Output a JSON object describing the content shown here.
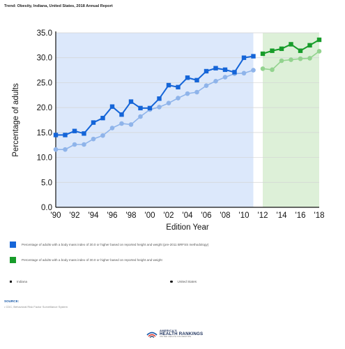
{
  "report_title": "Trend: Obesity, Indiana, United States, 2018 Annual Report",
  "chart_data": {
    "type": "line",
    "ylabel": "Percentage of adults",
    "xlabel": "Edition Year",
    "ylim": [
      0,
      35
    ],
    "yticks": [
      "0.0",
      "5.0",
      "10.0",
      "15.0",
      "20.0",
      "25.0",
      "30.0",
      "35.0"
    ],
    "xlim": [
      1990,
      2018
    ],
    "xticks": [
      {
        "value": 1990,
        "label": "'90"
      },
      {
        "value": 1992,
        "label": "'92"
      },
      {
        "value": 1994,
        "label": "'94"
      },
      {
        "value": 1996,
        "label": "'96"
      },
      {
        "value": 1998,
        "label": "'98"
      },
      {
        "value": 2000,
        "label": "'00"
      },
      {
        "value": 2002,
        "label": "'02"
      },
      {
        "value": 2004,
        "label": "'04"
      },
      {
        "value": 2006,
        "label": "'06"
      },
      {
        "value": 2008,
        "label": "'08"
      },
      {
        "value": 2010,
        "label": "'10"
      },
      {
        "value": 2012,
        "label": "'12"
      },
      {
        "value": 2014,
        "label": "'14"
      },
      {
        "value": 2016,
        "label": "'16"
      },
      {
        "value": 2018,
        "label": "'18"
      }
    ],
    "grid": "horizontal",
    "region_old": {
      "x_start": 1990,
      "x_end": 2011,
      "color": "#dce8fb"
    },
    "region_new": {
      "x_start": 2012,
      "x_end": 2018,
      "color": "#ddf0d8"
    },
    "series": [
      {
        "name": "Indiana",
        "method": "pre-2011",
        "marker": "square",
        "role": "state",
        "color_line": "#1565d8",
        "color_marker": "#1565d8",
        "x": [
          1990,
          1991,
          1992,
          1993,
          1994,
          1995,
          1996,
          1997,
          1998,
          1999,
          2000,
          2001,
          2002,
          2003,
          2004,
          2005,
          2006,
          2007,
          2008,
          2009,
          2010,
          2011
        ],
        "values": [
          14.5,
          14.5,
          15.3,
          14.8,
          17.0,
          17.9,
          20.2,
          18.6,
          21.2,
          19.9,
          19.9,
          21.8,
          24.5,
          24.1,
          26.0,
          25.5,
          27.3,
          27.9,
          27.6,
          27.1,
          30.0,
          30.3
        ]
      },
      {
        "name": "United States",
        "method": "pre-2011",
        "marker": "circle",
        "role": "nation",
        "color_line": "#8fb4ea",
        "color_marker": "#8fb4ea",
        "x": [
          1990,
          1991,
          1992,
          1993,
          1994,
          1995,
          1996,
          1997,
          1998,
          1999,
          2000,
          2001,
          2002,
          2003,
          2004,
          2005,
          2006,
          2007,
          2008,
          2009,
          2010,
          2011
        ],
        "values": [
          11.6,
          11.6,
          12.6,
          12.6,
          13.7,
          14.4,
          15.9,
          16.8,
          16.6,
          18.2,
          19.6,
          20.1,
          20.9,
          21.9,
          22.8,
          23.1,
          24.4,
          25.3,
          26.1,
          26.8,
          26.9,
          27.5
        ]
      },
      {
        "name": "Indiana",
        "method": "current",
        "marker": "square",
        "role": "state",
        "color_line": "#179c2a",
        "color_marker": "#179c2a",
        "x": [
          2012,
          2013,
          2014,
          2015,
          2016,
          2017,
          2018
        ],
        "values": [
          30.8,
          31.4,
          31.8,
          32.7,
          31.4,
          32.5,
          33.6
        ]
      },
      {
        "name": "United States",
        "method": "current",
        "marker": "circle",
        "role": "nation",
        "color_line": "#93d38f",
        "color_marker": "#93d38f",
        "x": [
          2012,
          2013,
          2014,
          2015,
          2016,
          2017,
          2018
        ],
        "values": [
          27.8,
          27.6,
          29.4,
          29.6,
          29.8,
          29.9,
          31.3
        ]
      }
    ]
  },
  "legend": {
    "old_method": {
      "label": "Percentage of adults with a body mass index of 30.0 or higher based on reported height and weight (pre-2011 BRFSS methodology)",
      "color": "#1565d8"
    },
    "new_method": {
      "label": "Percentage of adults with a body mass index of 30.0 or higher based on reported height and weight",
      "color": "#179c2a"
    },
    "state_label": "Indiana",
    "nation_label": "United States"
  },
  "source": {
    "heading": "SOURCE:",
    "items": [
      "CDC, Behavioral Risk Factor Surveillance System"
    ]
  },
  "logo": {
    "top": "AMERICA'S",
    "main": "HEALTH RANKINGS",
    "sub": "UNITED HEALTH FOUNDATION"
  }
}
